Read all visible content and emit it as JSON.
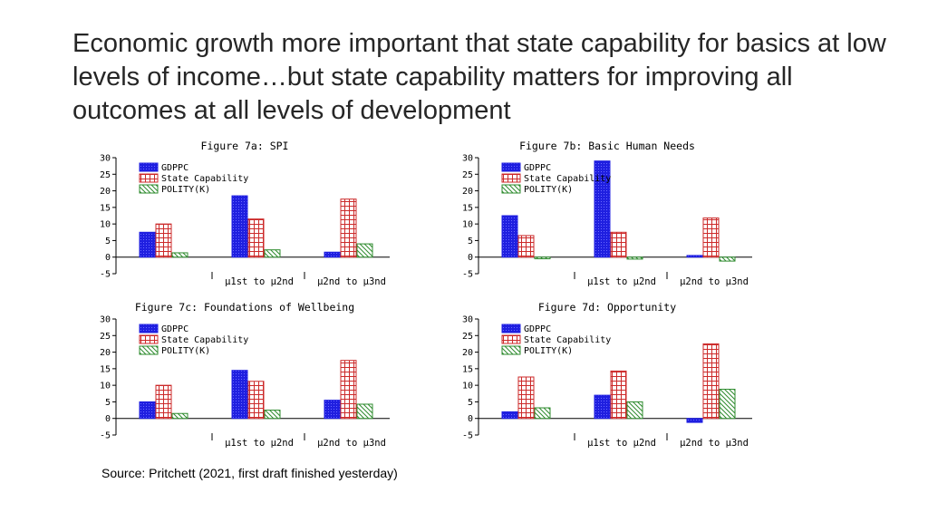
{
  "slide": {
    "title": "Economic growth more important that state capability for basics at low levels of income…but state capability matters for improving all outcomes at all levels of development",
    "source": "Source:  Pritchett (2021, first draft finished yesterday)"
  },
  "colors": {
    "gdppc": "#1f1fe0",
    "state_capability": "#cc2a2a",
    "polity": "#2e8b2e",
    "axis": "#000000",
    "text": "#262626"
  },
  "chart_data": [
    {
      "type": "bar",
      "title": "Figure 7a: SPI",
      "categories": [
        "",
        "μ1st to μ2nd",
        "μ2nd to μ3nd"
      ],
      "series": [
        {
          "name": "GDPPC",
          "values": [
            7.5,
            18.5,
            1.5
          ]
        },
        {
          "name": "State Capability",
          "values": [
            10,
            11.5,
            17.5
          ]
        },
        {
          "name": "POLITY(K)",
          "values": [
            1.3,
            2.2,
            4
          ]
        }
      ],
      "ylim": [
        -5,
        30
      ],
      "yticks": [
        -5,
        0,
        5,
        10,
        15,
        20,
        25,
        30
      ],
      "xlabel": "",
      "ylabel": ""
    },
    {
      "type": "bar",
      "title": "Figure 7b: Basic Human Needs",
      "categories": [
        "",
        "μ1st to μ2nd",
        "μ2nd to μ3nd"
      ],
      "series": [
        {
          "name": "GDPPC",
          "values": [
            12.5,
            29,
            0.5
          ]
        },
        {
          "name": "State Capability",
          "values": [
            6.5,
            7.5,
            11.8
          ]
        },
        {
          "name": "POLITY(K)",
          "values": [
            -0.5,
            -0.6,
            -1.2
          ]
        }
      ],
      "ylim": [
        -5,
        30
      ],
      "yticks": [
        -5,
        0,
        5,
        10,
        15,
        20,
        25,
        30
      ],
      "xlabel": "",
      "ylabel": ""
    },
    {
      "type": "bar",
      "title": "Figure 7c: Foundations of Wellbeing",
      "categories": [
        "",
        "μ1st to μ2nd",
        "μ2nd to μ3nd"
      ],
      "series": [
        {
          "name": "GDPPC",
          "values": [
            5,
            14.5,
            5.5
          ]
        },
        {
          "name": "State Capability",
          "values": [
            10,
            11.2,
            17.5
          ]
        },
        {
          "name": "POLITY(K)",
          "values": [
            1.5,
            2.5,
            4.3
          ]
        }
      ],
      "ylim": [
        -5,
        30
      ],
      "yticks": [
        -5,
        0,
        5,
        10,
        15,
        20,
        25,
        30
      ],
      "xlabel": "",
      "ylabel": ""
    },
    {
      "type": "bar",
      "title": "Figure 7d: Opportunity",
      "categories": [
        "",
        "μ1st to μ2nd",
        "μ2nd to μ3nd"
      ],
      "series": [
        {
          "name": "GDPPC",
          "values": [
            2,
            7,
            -1.2
          ]
        },
        {
          "name": "State Capability",
          "values": [
            12.5,
            14.3,
            22.5
          ]
        },
        {
          "name": "POLITY(K)",
          "values": [
            3.2,
            5,
            8.8
          ]
        }
      ],
      "ylim": [
        -5,
        30
      ],
      "yticks": [
        -5,
        0,
        5,
        10,
        15,
        20,
        25,
        30
      ],
      "xlabel": "",
      "ylabel": ""
    }
  ]
}
